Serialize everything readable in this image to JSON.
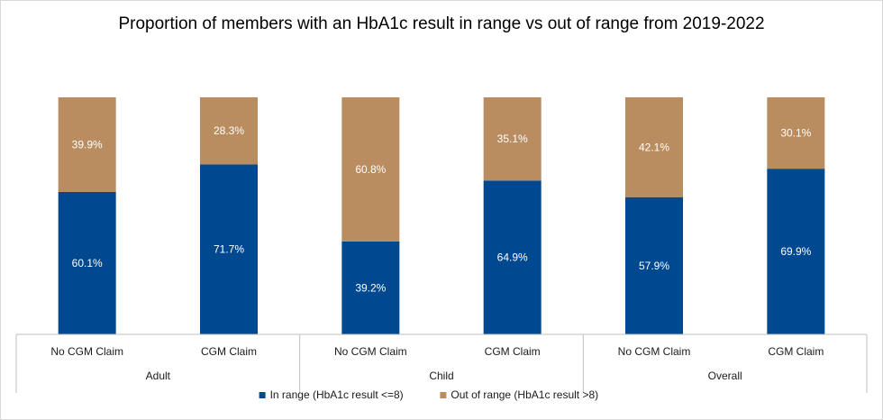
{
  "chart_data": {
    "type": "bar",
    "stacked": true,
    "title": "Proportion of members with an HbA1c result in range vs out of range from 2019-2022",
    "groups": [
      {
        "label": "Adult",
        "categories": [
          "No CGM Claim",
          "CGM Claim"
        ]
      },
      {
        "label": "Child",
        "categories": [
          "No CGM Claim",
          "CGM Claim"
        ]
      },
      {
        "label": "Overall",
        "categories": [
          "No CGM Claim",
          "CGM Claim"
        ]
      }
    ],
    "series": [
      {
        "name": "In range (HbA1c result <=8)",
        "color": "#004990",
        "values": [
          60.1,
          71.7,
          39.2,
          64.9,
          57.9,
          69.9
        ],
        "labels": [
          "60.1%",
          "71.7%",
          "39.2%",
          "64.9%",
          "57.9%",
          "69.9%"
        ]
      },
      {
        "name": "Out of range (HbA1c result >8)",
        "color": "#B98D5F",
        "values": [
          39.9,
          28.3,
          60.8,
          35.1,
          42.1,
          30.1
        ],
        "labels": [
          "39.9%",
          "28.3%",
          "60.8%",
          "35.1%",
          "42.1%",
          "30.1%"
        ]
      }
    ],
    "ylim": [
      0,
      100
    ],
    "grid": false,
    "legend_position": "bottom"
  }
}
